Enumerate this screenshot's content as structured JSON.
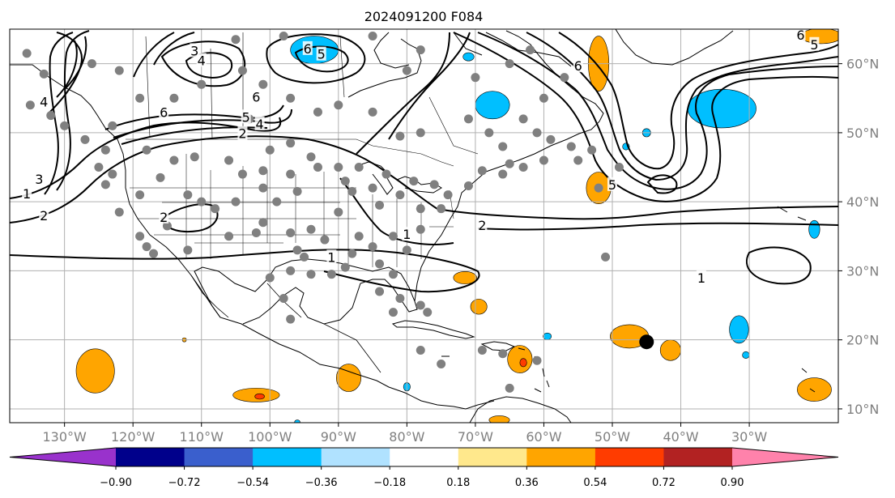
{
  "title": "2024091200 F084",
  "map": {
    "projection": "cylindrical",
    "lon_range": [
      -138,
      -17
    ],
    "lat_range": [
      8,
      65
    ],
    "lon_ticks": [
      {
        "lon": -130,
        "label": "130°W"
      },
      {
        "lon": -120,
        "label": "120°W"
      },
      {
        "lon": -110,
        "label": "110°W"
      },
      {
        "lon": -100,
        "label": "100°W"
      },
      {
        "lon": -90,
        "label": "90°W"
      },
      {
        "lon": -80,
        "label": "80°W"
      },
      {
        "lon": -70,
        "label": "70°W"
      },
      {
        "lon": -60,
        "label": "60°W"
      },
      {
        "lon": -50,
        "label": "50°W"
      },
      {
        "lon": -40,
        "label": "40°W"
      },
      {
        "lon": -30,
        "label": "30°W"
      }
    ],
    "lat_ticks": [
      {
        "lat": 60,
        "label": "60°N"
      },
      {
        "lat": 50,
        "label": "50°N"
      },
      {
        "lat": 40,
        "label": "40°N"
      },
      {
        "lat": 30,
        "label": "30°N"
      },
      {
        "lat": 20,
        "label": "20°N"
      },
      {
        "lat": 10,
        "label": "10°N"
      }
    ],
    "grid": true,
    "storm_marker": {
      "lon": -45,
      "lat": 19.7
    },
    "contour_labels": [
      {
        "text": "1",
        "lon": -80,
        "lat": 35.3
      },
      {
        "text": "1",
        "lon": -91,
        "lat": 32
      },
      {
        "text": "1",
        "lon": -135.5,
        "lat": 41.2
      },
      {
        "text": "1",
        "lon": -37,
        "lat": 29
      },
      {
        "text": "2",
        "lon": -69,
        "lat": 36.6
      },
      {
        "text": "2",
        "lon": -133,
        "lat": 38
      },
      {
        "text": "2",
        "lon": -115.5,
        "lat": 37.8
      },
      {
        "text": "2",
        "lon": -104,
        "lat": 49.9
      },
      {
        "text": "3",
        "lon": -133.7,
        "lat": 43.3
      },
      {
        "text": "4",
        "lon": -101.5,
        "lat": 51.3
      },
      {
        "text": "4",
        "lon": -110,
        "lat": 60.5
      },
      {
        "text": "5",
        "lon": -103.5,
        "lat": 52.3
      },
      {
        "text": "5",
        "lon": -92.5,
        "lat": 61.4
      },
      {
        "text": "5",
        "lon": -50,
        "lat": 42.5
      },
      {
        "text": "5",
        "lon": -20.5,
        "lat": 62.8
      },
      {
        "text": "6",
        "lon": -115.5,
        "lat": 53
      },
      {
        "text": "6",
        "lon": -102,
        "lat": 55.2
      },
      {
        "text": "6",
        "lon": -94.5,
        "lat": 62.2
      },
      {
        "text": "6",
        "lon": -22.5,
        "lat": 64.2
      },
      {
        "text": "6",
        "lon": -55,
        "lat": 59.7
      },
      {
        "text": "3",
        "lon": -111,
        "lat": 61.9
      },
      {
        "text": "4",
        "lon": -133,
        "lat": 54.5
      }
    ],
    "stations": [
      [
        -135.5,
        61.5
      ],
      [
        -122,
        59
      ],
      [
        -126,
        60
      ],
      [
        -133,
        58.5
      ],
      [
        -135,
        54
      ],
      [
        -132,
        52.5
      ],
      [
        -130,
        51
      ],
      [
        -127,
        49
      ],
      [
        -124,
        47.5
      ],
      [
        -125,
        45
      ],
      [
        -123,
        44
      ],
      [
        -124,
        42.5
      ],
      [
        -122,
        38.5
      ],
      [
        -119,
        35
      ],
      [
        -118,
        33.5
      ],
      [
        -117,
        32.5
      ],
      [
        -112,
        33
      ],
      [
        -115,
        36.5
      ],
      [
        -112,
        41
      ],
      [
        -119,
        41
      ],
      [
        -116,
        43.5
      ],
      [
        -114,
        46
      ],
      [
        -118,
        47.5
      ],
      [
        -111,
        46.5
      ],
      [
        -106,
        46
      ],
      [
        -100,
        47.5
      ],
      [
        -97,
        48.5
      ],
      [
        -104,
        44
      ],
      [
        -101,
        44.5
      ],
      [
        -97,
        44
      ],
      [
        -96,
        41.5
      ],
      [
        -99,
        40
      ],
      [
        -101,
        42
      ],
      [
        -105,
        40
      ],
      [
        -108,
        39
      ],
      [
        -110,
        40
      ],
      [
        -106,
        35
      ],
      [
        -102,
        35.5
      ],
      [
        -101,
        37
      ],
      [
        -97,
        35.5
      ],
      [
        -94,
        36
      ],
      [
        -96,
        33
      ],
      [
        -92,
        34.5
      ],
      [
        -90,
        38.5
      ],
      [
        -88,
        41.5
      ],
      [
        -85,
        42
      ],
      [
        -83,
        44
      ],
      [
        -87,
        45
      ],
      [
        -90,
        45
      ],
      [
        -93,
        45
      ],
      [
        -94,
        46.5
      ],
      [
        -89,
        43
      ],
      [
        -84,
        39.5
      ],
      [
        -81,
        41
      ],
      [
        -79,
        43
      ],
      [
        -76,
        42.5
      ],
      [
        -74,
        41
      ],
      [
        -71,
        42.3
      ],
      [
        -69,
        44.5
      ],
      [
        -65,
        45.5
      ],
      [
        -63,
        45
      ],
      [
        -60,
        46
      ],
      [
        -56,
        48
      ],
      [
        -53,
        47.5
      ],
      [
        -59,
        49
      ],
      [
        -66,
        48
      ],
      [
        -68,
        50
      ],
      [
        -71,
        52
      ],
      [
        -63,
        52
      ],
      [
        -60,
        55
      ],
      [
        -57,
        58
      ],
      [
        -78,
        50
      ],
      [
        -81,
        49.5
      ],
      [
        -85,
        53
      ],
      [
        -90,
        54
      ],
      [
        -93,
        53
      ],
      [
        -97,
        55
      ],
      [
        -101,
        57
      ],
      [
        -104,
        59
      ],
      [
        -110,
        57
      ],
      [
        -114,
        55
      ],
      [
        -119,
        55
      ],
      [
        -123,
        51
      ],
      [
        -105,
        63.5
      ],
      [
        -98,
        64
      ],
      [
        -85,
        64
      ],
      [
        -80,
        59
      ],
      [
        -78,
        62
      ],
      [
        -70,
        58
      ],
      [
        -65,
        60
      ],
      [
        -62,
        62
      ],
      [
        -49,
        45
      ],
      [
        -52,
        42
      ],
      [
        -61,
        50
      ],
      [
        -66,
        44
      ],
      [
        -55,
        46
      ],
      [
        -87,
        35
      ],
      [
        -85,
        33.5
      ],
      [
        -82,
        35
      ],
      [
        -78,
        36
      ],
      [
        -75,
        39
      ],
      [
        -78,
        39
      ],
      [
        -80,
        33
      ],
      [
        -82,
        29.5
      ],
      [
        -84,
        27
      ],
      [
        -81,
        26
      ],
      [
        -82,
        24
      ],
      [
        -78,
        25
      ],
      [
        -77,
        24
      ],
      [
        -89,
        30.5
      ],
      [
        -91,
        29.5
      ],
      [
        -94,
        29.5
      ],
      [
        -97,
        30
      ],
      [
        -100,
        29
      ],
      [
        -98,
        26
      ],
      [
        -97,
        23
      ],
      [
        -95,
        32
      ],
      [
        -88,
        32.5
      ],
      [
        -84,
        31
      ],
      [
        -78,
        18.5
      ],
      [
        -75,
        16.5
      ],
      [
        -69,
        18.5
      ],
      [
        -66,
        18
      ],
      [
        -61,
        17
      ],
      [
        -65,
        13
      ],
      [
        -51,
        32
      ],
      [
        -103,
        52
      ]
    ],
    "fills": [
      {
        "color": "#ffa500",
        "center": [
          -47.5,
          20.5
        ],
        "rx": 2.8,
        "ry": 1.7
      },
      {
        "color": "#ffa500",
        "center": [
          -41.5,
          18.5
        ],
        "rx": 1.5,
        "ry": 1.5
      },
      {
        "color": "#ffa500",
        "center": [
          -71.5,
          29
        ],
        "rx": 1.7,
        "ry": 0.9
      },
      {
        "color": "#ffa500",
        "center": [
          -69.5,
          24.8
        ],
        "rx": 1.2,
        "ry": 1.1
      },
      {
        "color": "#ffa500",
        "center": [
          -63.5,
          17.2
        ],
        "rx": 1.8,
        "ry": 2.0
      },
      {
        "color": "#ff3c00",
        "center": [
          -63,
          16.7
        ],
        "rx": 0.5,
        "ry": 0.6
      },
      {
        "color": "#ffa500",
        "center": [
          -125.5,
          15.5
        ],
        "rx": 2.8,
        "ry": 3.2
      },
      {
        "color": "#ffa500",
        "center": [
          -102,
          12
        ],
        "rx": 3.4,
        "ry": 1.0
      },
      {
        "color": "#ff3c00",
        "center": [
          -101.5,
          11.8
        ],
        "rx": 0.7,
        "ry": 0.4
      },
      {
        "color": "#ffa500",
        "center": [
          -88.5,
          14.5
        ],
        "rx": 1.8,
        "ry": 2.0
      },
      {
        "color": "#ffa500",
        "center": [
          -66.5,
          8.4
        ],
        "rx": 1.5,
        "ry": 0.6
      },
      {
        "color": "#ffa500",
        "center": [
          -20.5,
          12.8
        ],
        "rx": 2.5,
        "ry": 1.7
      },
      {
        "color": "#ffa500",
        "center": [
          -52,
          60
        ],
        "rx": 1.5,
        "ry": 4.0
      },
      {
        "color": "#ffa500",
        "center": [
          -52,
          42
        ],
        "rx": 1.8,
        "ry": 2.3
      },
      {
        "color": "#ffa500",
        "center": [
          -19.5,
          64
        ],
        "rx": 3.0,
        "ry": 1.1
      },
      {
        "color": "#ffa500",
        "center": [
          -112.5,
          20
        ],
        "rx": 0.3,
        "ry": 0.3
      },
      {
        "color": "#00bfff",
        "center": [
          -93.5,
          62
        ],
        "rx": 3.5,
        "ry": 2.0
      },
      {
        "color": "#00bfff",
        "center": [
          -67.5,
          54
        ],
        "rx": 2.5,
        "ry": 2.0
      },
      {
        "color": "#00bfff",
        "center": [
          -34,
          53.5
        ],
        "rx": 5.0,
        "ry": 2.8
      },
      {
        "color": "#00bfff",
        "center": [
          -31.5,
          21.5
        ],
        "rx": 1.4,
        "ry": 2.0
      },
      {
        "color": "#00bfff",
        "center": [
          -20.5,
          36
        ],
        "rx": 0.8,
        "ry": 1.3
      },
      {
        "color": "#00bfff",
        "center": [
          -71,
          61
        ],
        "rx": 0.8,
        "ry": 0.6
      },
      {
        "color": "#00bfff",
        "center": [
          -45,
          50
        ],
        "rx": 0.6,
        "ry": 0.6
      },
      {
        "color": "#00bfff",
        "center": [
          -48,
          48
        ],
        "rx": 0.5,
        "ry": 0.5
      },
      {
        "color": "#00bfff",
        "center": [
          -80,
          13.2
        ],
        "rx": 0.5,
        "ry": 0.6
      },
      {
        "color": "#00bfff",
        "center": [
          -30.5,
          17.8
        ],
        "rx": 0.5,
        "ry": 0.5
      },
      {
        "color": "#00bfff",
        "center": [
          -59.5,
          20.5
        ],
        "rx": 0.6,
        "ry": 0.5
      },
      {
        "color": "#00bfff",
        "center": [
          -96,
          8.1
        ],
        "rx": 0.4,
        "ry": 0.3
      }
    ]
  },
  "colorbar": {
    "colors": [
      "#9932cc",
      "#00008b",
      "#3a5fcd",
      "#00bfff",
      "#b0e2ff",
      "#ffffff",
      "#ffe88c",
      "#ffa500",
      "#ff3c00",
      "#b22222",
      "#ff82ab"
    ],
    "tick_labels": [
      "−0.90",
      "−0.72",
      "−0.54",
      "−0.36",
      "−0.18",
      "0.18",
      "0.36",
      "0.54",
      "0.72",
      "0.90"
    ]
  }
}
